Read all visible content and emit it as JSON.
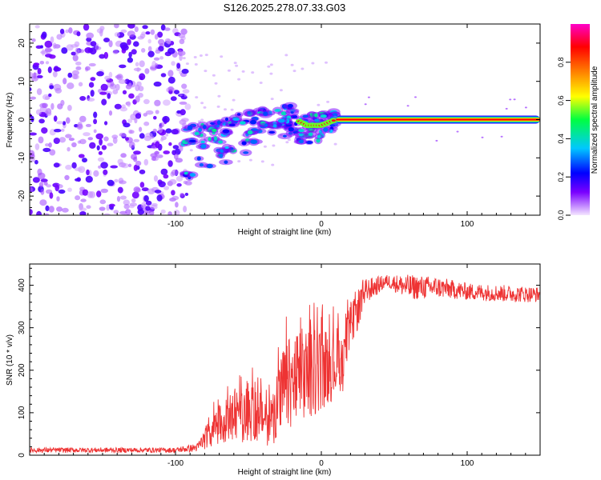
{
  "title": "S126.2025.278.07.33.G03",
  "chart_data": [
    {
      "type": "heatmap",
      "xlabel": "Height of straight line (km)",
      "ylabel": "Frequency (Hz)",
      "xlim": [
        -200,
        150
      ],
      "ylim": [
        -25,
        25
      ],
      "xticks": [
        -100,
        0,
        100
      ],
      "xtick_labels": [
        "-100",
        "0",
        "100"
      ],
      "yticks": [
        20,
        10,
        0,
        -10,
        -20
      ],
      "ytick_labels": [
        "20",
        "10",
        "0",
        "-10",
        "-20"
      ],
      "colorbar": {
        "label": "Normalized spectral amplitude",
        "range": [
          0,
          1
        ],
        "ticks": [
          0.0,
          0.2,
          0.4,
          0.6,
          0.8
        ],
        "tick_labels": [
          "0.0",
          "0.2",
          "0.4",
          "0.6",
          "0.8"
        ]
      },
      "features": [
        {
          "name": "noise_region",
          "x_range": [
            -200,
            -95
          ],
          "freq_range": [
            -25,
            25
          ],
          "amplitude": 0.15
        },
        {
          "name": "signal_trace",
          "points": [
            {
              "x": -95,
              "freq": -5
            },
            {
              "x": -80,
              "freq": -4
            },
            {
              "x": -70,
              "freq": -3
            },
            {
              "x": -60,
              "freq": -2
            },
            {
              "x": -50,
              "freq": -1
            },
            {
              "x": -40,
              "freq": 0.5
            },
            {
              "x": -30,
              "freq": 1.5
            },
            {
              "x": -20,
              "freq": 0.5
            },
            {
              "x": -10,
              "freq": -1.5
            },
            {
              "x": 0,
              "freq": -1.5
            },
            {
              "x": 10,
              "freq": 0
            }
          ]
        },
        {
          "name": "tone_line",
          "x_range": [
            10,
            150
          ],
          "freq": 0,
          "amplitude": 1.0
        }
      ]
    },
    {
      "type": "line",
      "xlabel": "Height of straight line (km)",
      "ylabel": "SNR (10 * v/v)",
      "xlim": [
        -200,
        150
      ],
      "ylim": [
        0,
        450
      ],
      "xticks": [
        -100,
        0,
        100
      ],
      "xtick_labels": [
        "-100",
        "0",
        "100"
      ],
      "yticks": [
        0,
        100,
        200,
        300,
        400
      ],
      "ytick_labels": [
        "0",
        "100",
        "200",
        "300",
        "400"
      ],
      "series": [
        {
          "name": "SNR",
          "color": "#ee3333",
          "envelope": [
            {
              "x": -200,
              "mean": 12,
              "spread": 6
            },
            {
              "x": -100,
              "mean": 12,
              "spread": 6
            },
            {
              "x": -85,
              "mean": 18,
              "spread": 10
            },
            {
              "x": -75,
              "mean": 60,
              "spread": 40
            },
            {
              "x": -60,
              "mean": 90,
              "spread": 60
            },
            {
              "x": -45,
              "mean": 100,
              "spread": 70
            },
            {
              "x": -35,
              "mean": 80,
              "spread": 60
            },
            {
              "x": -25,
              "mean": 160,
              "spread": 110
            },
            {
              "x": -15,
              "mean": 180,
              "spread": 120
            },
            {
              "x": -5,
              "mean": 200,
              "spread": 110
            },
            {
              "x": 5,
              "mean": 210,
              "spread": 90
            },
            {
              "x": 15,
              "mean": 230,
              "spread": 80
            },
            {
              "x": 22,
              "mean": 320,
              "spread": 60
            },
            {
              "x": 30,
              "mean": 385,
              "spread": 30
            },
            {
              "x": 45,
              "mean": 410,
              "spread": 15
            },
            {
              "x": 60,
              "mean": 395,
              "spread": 30
            },
            {
              "x": 80,
              "mean": 395,
              "spread": 25
            },
            {
              "x": 100,
              "mean": 385,
              "spread": 20
            },
            {
              "x": 130,
              "mean": 380,
              "spread": 20
            },
            {
              "x": 150,
              "mean": 378,
              "spread": 18
            }
          ]
        }
      ]
    }
  ]
}
